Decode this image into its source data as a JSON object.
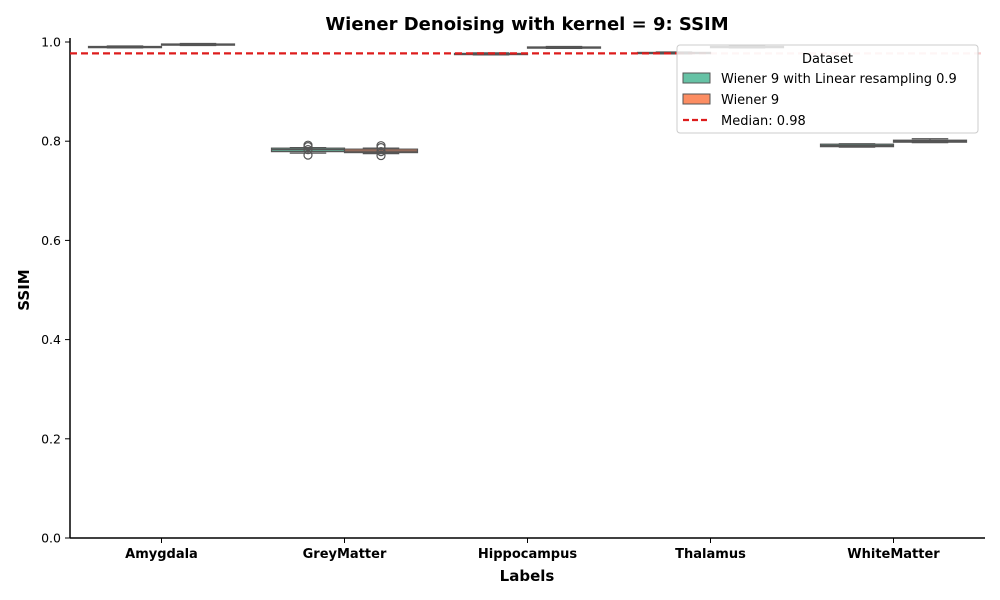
{
  "chart_data": {
    "type": "box",
    "title": "Wiener Denoising with kernel = 9: SSIM",
    "xlabel": "Labels",
    "ylabel": "SSIM",
    "ylim": [
      0.0,
      1.0
    ],
    "yticks": [
      "0.0",
      "0.2",
      "0.4",
      "0.6",
      "0.8",
      "1.0"
    ],
    "categories": [
      "Amygdala",
      "GreyMatter",
      "Hippocampus",
      "Thalamus",
      "WhiteMatter"
    ],
    "legend_title": "Dataset",
    "legend_position": "top-right",
    "median_line": {
      "label": "Median: 0.98",
      "value": 0.977,
      "color": "#dd1c1c"
    },
    "series": [
      {
        "name": "Wiener 9 with Linear resampling 0.9",
        "color": "#66c2a5",
        "boxes": [
          {
            "category": "Amygdala",
            "q1": 0.989,
            "median": 0.99,
            "q3": 0.991,
            "whisker_low": 0.988,
            "whisker_high": 0.992,
            "outliers": []
          },
          {
            "category": "GreyMatter",
            "q1": 0.779,
            "median": 0.783,
            "q3": 0.786,
            "whisker_low": 0.776,
            "whisker_high": 0.787,
            "outliers": [
              0.772,
              0.783,
              0.789,
              0.792
            ]
          },
          {
            "category": "Hippocampus",
            "q1": 0.975,
            "median": 0.976,
            "q3": 0.977,
            "whisker_low": 0.974,
            "whisker_high": 0.978,
            "outliers": []
          },
          {
            "category": "Thalamus",
            "q1": 0.977,
            "median": 0.978,
            "q3": 0.979,
            "whisker_low": 0.976,
            "whisker_high": 0.98,
            "outliers": []
          },
          {
            "category": "WhiteMatter",
            "q1": 0.789,
            "median": 0.791,
            "q3": 0.794,
            "whisker_low": 0.788,
            "whisker_high": 0.795,
            "outliers": []
          }
        ]
      },
      {
        "name": "Wiener 9",
        "color": "#fc8d62",
        "boxes": [
          {
            "category": "Amygdala",
            "q1": 0.994,
            "median": 0.995,
            "q3": 0.996,
            "whisker_low": 0.993,
            "whisker_high": 0.997,
            "outliers": []
          },
          {
            "category": "GreyMatter",
            "q1": 0.777,
            "median": 0.78,
            "q3": 0.784,
            "whisker_low": 0.775,
            "whisker_high": 0.786,
            "outliers": [
              0.771,
              0.779,
              0.787,
              0.791
            ]
          },
          {
            "category": "Hippocampus",
            "q1": 0.988,
            "median": 0.989,
            "q3": 0.99,
            "whisker_low": 0.987,
            "whisker_high": 0.991,
            "outliers": []
          },
          {
            "category": "Thalamus",
            "q1": 0.989,
            "median": 0.99,
            "q3": 0.991,
            "whisker_low": 0.988,
            "whisker_high": 0.992,
            "outliers": []
          },
          {
            "category": "WhiteMatter",
            "q1": 0.798,
            "median": 0.8,
            "q3": 0.802,
            "whisker_low": 0.797,
            "whisker_high": 0.805,
            "outliers": []
          }
        ]
      }
    ],
    "grid": false
  }
}
